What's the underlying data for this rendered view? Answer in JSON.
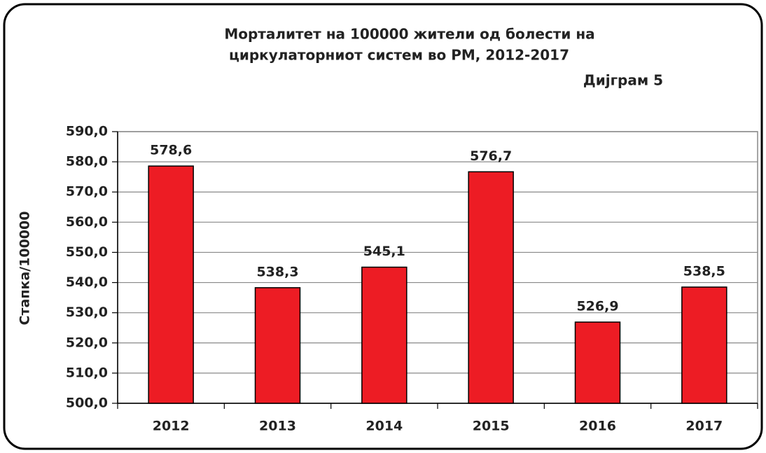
{
  "chart_data": {
    "type": "bar",
    "title": [
      "Морталитет на 100000 жители од болести на",
      "циркулаторниот систем во РМ, 2012-2017"
    ],
    "subtitle": "Дијграм 5",
    "y_label": "Стапка/100000",
    "categories": [
      "2012",
      "2013",
      "2014",
      "2015",
      "2016",
      "2017"
    ],
    "values": [
      578.6,
      538.3,
      545.1,
      576.7,
      526.9,
      538.5
    ],
    "value_labels": [
      "578,6",
      "538,3",
      "545,1",
      "576,7",
      "526,9",
      "538,5"
    ],
    "color": "#ed1c24",
    "ylim": [
      500,
      590
    ],
    "yticks": [
      {
        "value": 500,
        "label": "500,0"
      },
      {
        "value": 510,
        "label": "510,0"
      },
      {
        "value": 520,
        "label": "520,0"
      },
      {
        "value": 530,
        "label": "530,0"
      },
      {
        "value": 540,
        "label": "540,0"
      },
      {
        "value": 550,
        "label": "550,0"
      },
      {
        "value": 560,
        "label": "560,0"
      },
      {
        "value": 570,
        "label": "570,0"
      },
      {
        "value": 580,
        "label": "580,0"
      },
      {
        "value": 590,
        "label": "590,0"
      }
    ],
    "grid": true
  }
}
